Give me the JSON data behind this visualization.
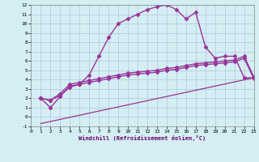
{
  "xlabel": "Windchill (Refroidissement éolien,°C)",
  "background_color": "#d4eef4",
  "grid_color": "#b0c8d8",
  "line_color": "#993399",
  "xlim": [
    0,
    23
  ],
  "ylim": [
    -1,
    12
  ],
  "xticks": [
    0,
    1,
    2,
    3,
    4,
    5,
    6,
    7,
    8,
    9,
    10,
    11,
    12,
    13,
    14,
    15,
    16,
    17,
    18,
    19,
    20,
    21,
    22,
    23
  ],
  "yticks": [
    -1,
    0,
    1,
    2,
    3,
    4,
    5,
    6,
    7,
    8,
    9,
    10,
    11,
    12
  ],
  "series": [
    {
      "x": [
        1,
        2,
        3,
        4,
        5,
        6,
        7,
        8,
        9,
        10,
        11,
        12,
        13,
        14,
        15,
        16,
        17,
        18,
        19,
        20,
        21,
        22,
        23
      ],
      "y": [
        2,
        1,
        2.2,
        3.3,
        3.5,
        4.5,
        6.5,
        8.5,
        10,
        10.5,
        11,
        11.5,
        11.8,
        12,
        11.5,
        10.5,
        11.2,
        7.5,
        6.3,
        6.5,
        6.5,
        4.2,
        4.2
      ],
      "marker": "D",
      "markersize": 2.5,
      "linewidth": 1.0
    },
    {
      "x": [
        1,
        2,
        3,
        4,
        5,
        6,
        7,
        8,
        9,
        10,
        11,
        12,
        13,
        14,
        15,
        16,
        17,
        18,
        19,
        20,
        21,
        22,
        23
      ],
      "y": [
        2,
        1.8,
        2.5,
        3.5,
        3.7,
        3.9,
        4.1,
        4.3,
        4.5,
        4.7,
        4.8,
        4.9,
        5.0,
        5.2,
        5.3,
        5.5,
        5.7,
        5.8,
        5.9,
        6.0,
        6.1,
        6.5,
        4.3
      ],
      "marker": "D",
      "markersize": 2.5,
      "linewidth": 1.0
    },
    {
      "x": [
        1,
        2,
        3,
        4,
        5,
        6,
        7,
        8,
        9,
        10,
        11,
        12,
        13,
        14,
        15,
        16,
        17,
        18,
        19,
        20,
        21,
        22,
        23
      ],
      "y": [
        2,
        1.8,
        2.3,
        3.2,
        3.5,
        3.7,
        3.9,
        4.1,
        4.3,
        4.5,
        4.6,
        4.7,
        4.8,
        5.0,
        5.1,
        5.3,
        5.5,
        5.6,
        5.7,
        5.8,
        5.9,
        6.3,
        4.1
      ],
      "marker": "D",
      "markersize": 2.5,
      "linewidth": 1.0
    },
    {
      "x": [
        1,
        23
      ],
      "y": [
        -0.7,
        4.2
      ],
      "marker": null,
      "markersize": 0,
      "linewidth": 0.9
    }
  ]
}
